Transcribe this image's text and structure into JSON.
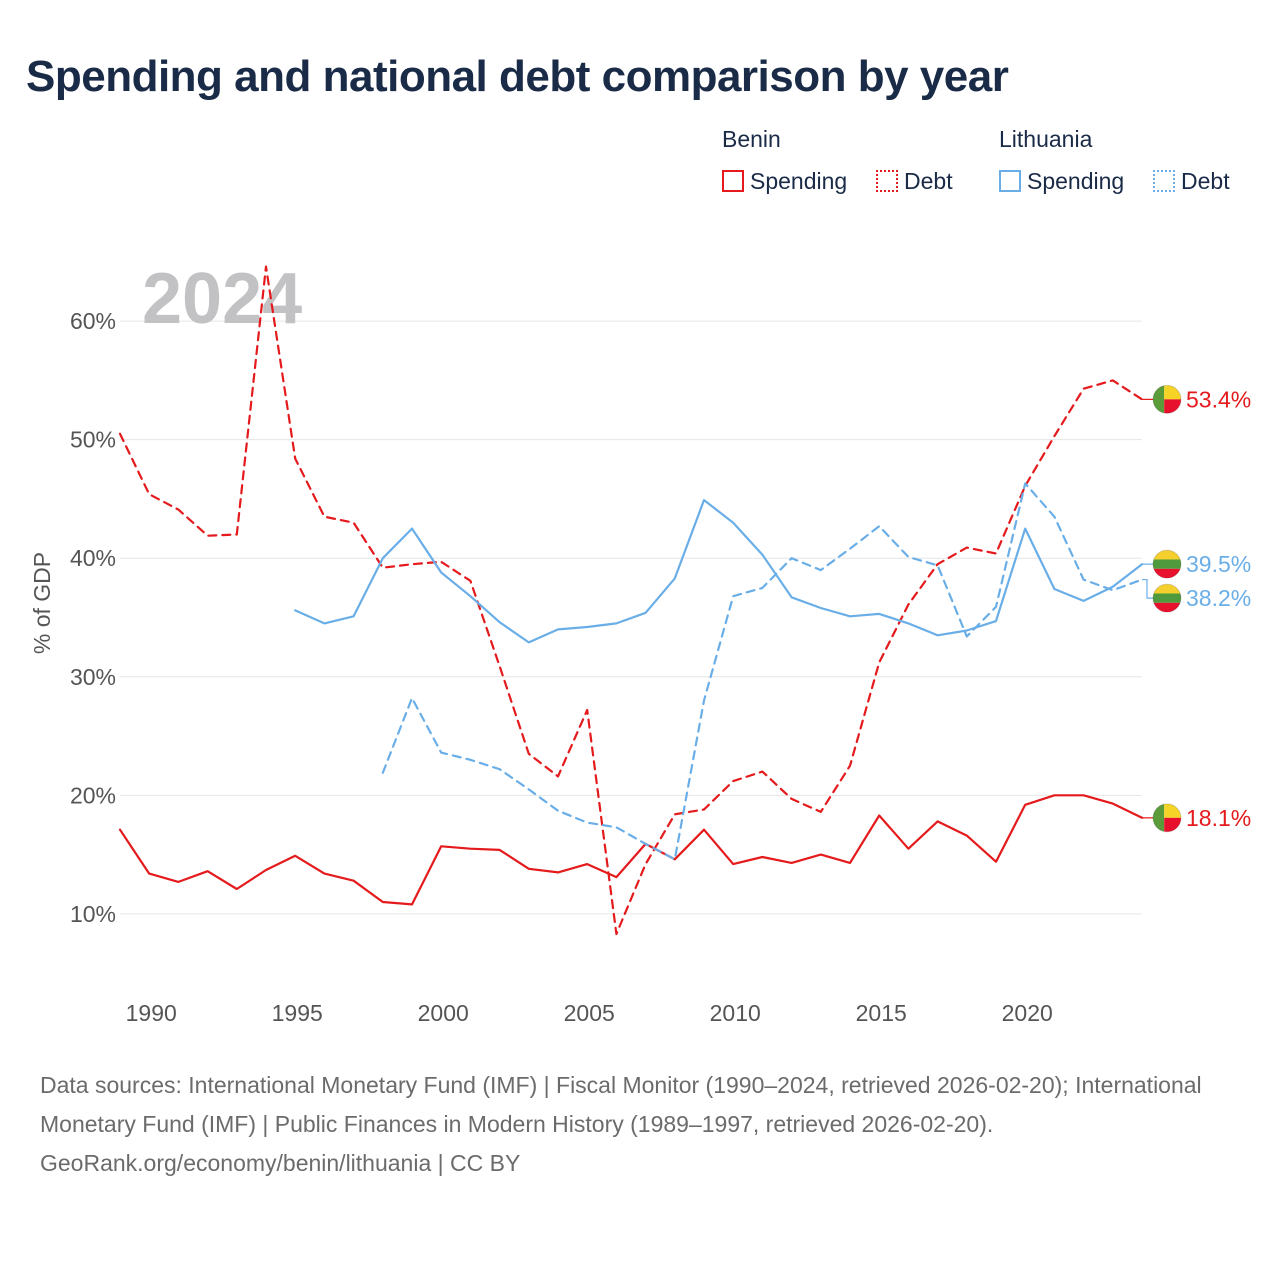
{
  "title": "Spending and national debt comparison by year",
  "legend": {
    "groups": [
      {
        "name": "Benin",
        "color": "#e41a1c",
        "items": [
          {
            "label": "Spending",
            "style": "solid"
          },
          {
            "label": "Debt",
            "style": "dotted"
          }
        ]
      },
      {
        "name": "Lithuania",
        "color": "#6aaee8",
        "items": [
          {
            "label": "Spending",
            "style": "solid"
          },
          {
            "label": "Debt",
            "style": "dotted"
          }
        ]
      }
    ]
  },
  "year_label": "2024",
  "chart_data": {
    "type": "line",
    "title": "Spending and national debt comparison by year",
    "xlabel": "",
    "ylabel": "% of GDP",
    "xlim": [
      1989,
      2024
    ],
    "ylim": [
      4,
      66
    ],
    "x_ticks": [
      1990,
      1995,
      2000,
      2005,
      2010,
      2015,
      2020
    ],
    "y_ticks": [
      10,
      20,
      30,
      40,
      50,
      60
    ],
    "y_tick_labels": [
      "10%",
      "20%",
      "30%",
      "40%",
      "50%",
      "60%"
    ],
    "grid": true,
    "series": [
      {
        "name": "Benin Spending",
        "country": "Benin",
        "measure": "Spending",
        "color": "#e41a1c",
        "dash": false,
        "end_label": "18.1%",
        "x": [
          1989,
          1990,
          1991,
          1992,
          1993,
          1994,
          1995,
          1996,
          1997,
          1998,
          1999,
          2000,
          2001,
          2002,
          2003,
          2004,
          2005,
          2006,
          2007,
          2008,
          2009,
          2010,
          2011,
          2012,
          2013,
          2014,
          2015,
          2016,
          2017,
          2018,
          2019,
          2020,
          2021,
          2022,
          2023,
          2024
        ],
        "values": [
          17.1,
          13.4,
          12.7,
          13.6,
          12.1,
          13.7,
          14.9,
          13.4,
          12.8,
          11.0,
          10.8,
          15.7,
          15.5,
          15.4,
          13.8,
          13.5,
          14.2,
          13.1,
          15.9,
          14.6,
          17.1,
          14.2,
          14.8,
          14.3,
          15.0,
          14.3,
          18.3,
          15.5,
          17.8,
          16.6,
          14.4,
          19.2,
          20.0,
          20.0,
          19.3,
          18.1
        ]
      },
      {
        "name": "Benin Debt",
        "country": "Benin",
        "measure": "Debt",
        "color": "#e41a1c",
        "dash": true,
        "end_label": "53.4%",
        "x": [
          1989,
          1990,
          1991,
          1992,
          1993,
          1994,
          1995,
          1996,
          1997,
          1998,
          1999,
          2000,
          2001,
          2002,
          2003,
          2004,
          2005,
          2006,
          2007,
          2008,
          2009,
          2010,
          2011,
          2012,
          2013,
          2014,
          2015,
          2016,
          2017,
          2018,
          2019,
          2020,
          2021,
          2022,
          2023,
          2024
        ],
        "values": [
          50.5,
          45.4,
          44.1,
          41.9,
          42.0,
          64.6,
          48.4,
          43.5,
          43.0,
          39.2,
          39.5,
          39.7,
          38.1,
          30.9,
          23.5,
          21.6,
          27.2,
          8.3,
          14.2,
          18.4,
          18.8,
          21.2,
          22.0,
          19.7,
          18.6,
          22.5,
          31.2,
          36.1,
          39.5,
          40.9,
          40.4,
          46.1,
          50.3,
          54.3,
          55.0,
          53.4
        ]
      },
      {
        "name": "Lithuania Spending",
        "country": "Lithuania",
        "measure": "Spending",
        "color": "#6aaee8",
        "dash": false,
        "end_label": "39.5%",
        "x": [
          1995,
          1996,
          1997,
          1998,
          1999,
          2000,
          2001,
          2002,
          2003,
          2004,
          2005,
          2006,
          2007,
          2008,
          2009,
          2010,
          2011,
          2012,
          2013,
          2014,
          2015,
          2016,
          2017,
          2018,
          2019,
          2020,
          2021,
          2022,
          2023,
          2024
        ],
        "values": [
          35.6,
          34.5,
          35.1,
          40.0,
          42.5,
          38.8,
          36.8,
          34.6,
          32.9,
          34.0,
          34.2,
          34.5,
          35.4,
          38.3,
          44.9,
          43.0,
          40.3,
          36.7,
          35.8,
          35.1,
          35.3,
          34.5,
          33.5,
          33.9,
          34.7,
          42.5,
          37.4,
          36.4,
          37.6,
          39.5
        ]
      },
      {
        "name": "Lithuania Debt",
        "country": "Lithuania",
        "measure": "Debt",
        "color": "#6aaee8",
        "dash": true,
        "end_label": "38.2%",
        "x": [
          1998,
          1999,
          2000,
          2001,
          2002,
          2003,
          2004,
          2005,
          2006,
          2007,
          2008,
          2009,
          2010,
          2011,
          2012,
          2013,
          2014,
          2015,
          2016,
          2017,
          2018,
          2019,
          2020,
          2021,
          2022,
          2023,
          2024
        ],
        "values": [
          21.9,
          28.2,
          23.6,
          23.0,
          22.2,
          20.5,
          18.7,
          17.7,
          17.3,
          15.9,
          14.6,
          28.0,
          36.8,
          37.5,
          40.0,
          39.0,
          40.8,
          42.7,
          40.1,
          39.4,
          33.4,
          35.9,
          46.3,
          43.5,
          38.2,
          37.3,
          38.2
        ]
      }
    ]
  },
  "source": {
    "line1": "Data sources: International Monetary Fund (IMF) | Fiscal Monitor (1990–2024, retrieved 2026-02-20); International Monetary Fund (IMF) | Public Finances in Modern History (1989–1997, retrieved 2026-02-20).",
    "line2": "GeoRank.org/economy/benin/lithuania | CC BY"
  },
  "flags": {
    "benin": {
      "green": "#5c9b3a",
      "yellow": "#f5d327",
      "red": "#e8112d"
    },
    "lithuania": {
      "yellow": "#f5cf2e",
      "green": "#4f9a3c",
      "red": "#e8112d"
    }
  }
}
